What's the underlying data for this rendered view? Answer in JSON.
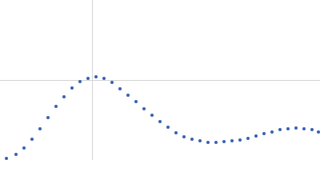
{
  "chart_data": {
    "type": "scatter",
    "x": [
      8,
      20,
      30,
      40,
      50,
      60,
      70,
      80,
      90,
      100,
      110,
      120,
      130,
      140,
      150,
      160,
      170,
      180,
      190,
      200,
      210,
      220,
      230,
      240,
      250,
      260,
      270,
      280,
      290,
      300,
      310,
      320,
      330,
      340,
      350,
      360,
      370,
      380,
      390,
      398
    ],
    "values": [
      2,
      7,
      15,
      26,
      39,
      53,
      67,
      79,
      90,
      98,
      102,
      104,
      102,
      97,
      89,
      81,
      73,
      64,
      56,
      48,
      41,
      34,
      29,
      26,
      24,
      22,
      22,
      23,
      24,
      25,
      27,
      30,
      33,
      35,
      38,
      39,
      40,
      39,
      38,
      35
    ],
    "color": "#3a62b0",
    "xlim": [
      0,
      400
    ],
    "ylim": [
      0,
      200
    ],
    "xticks": [
      115
    ],
    "yticks": [
      100
    ],
    "grid": true
  }
}
